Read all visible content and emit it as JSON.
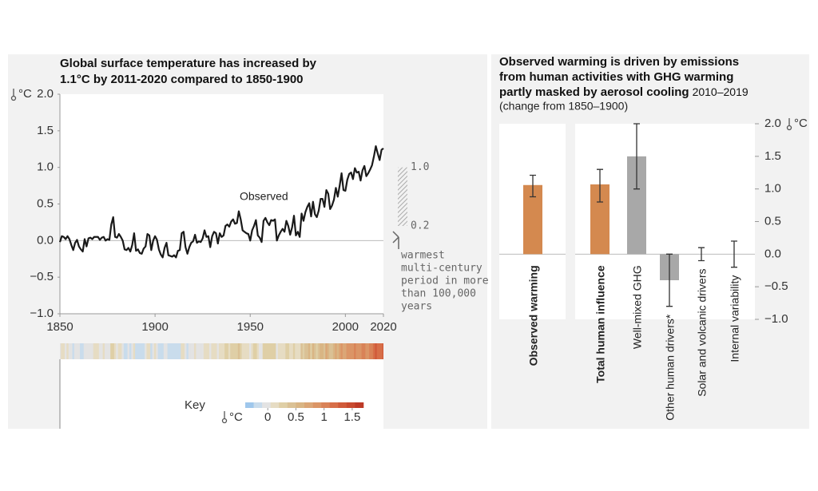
{
  "chart_data": [
    {
      "type": "line",
      "title": [
        "Global surface temperature has increased by",
        "1.1°C by 2011-2020 compared to 1850-1900"
      ],
      "y_unit": "°C",
      "x": [
        1850,
        1851,
        1852,
        1853,
        1854,
        1855,
        1856,
        1857,
        1858,
        1859,
        1860,
        1861,
        1862,
        1863,
        1864,
        1865,
        1866,
        1867,
        1868,
        1869,
        1870,
        1871,
        1872,
        1873,
        1874,
        1875,
        1876,
        1877,
        1878,
        1879,
        1880,
        1881,
        1882,
        1883,
        1884,
        1885,
        1886,
        1887,
        1888,
        1889,
        1890,
        1891,
        1892,
        1893,
        1894,
        1895,
        1896,
        1897,
        1898,
        1899,
        1900,
        1901,
        1902,
        1903,
        1904,
        1905,
        1906,
        1907,
        1908,
        1909,
        1910,
        1911,
        1912,
        1913,
        1914,
        1915,
        1916,
        1917,
        1918,
        1919,
        1920,
        1921,
        1922,
        1923,
        1924,
        1925,
        1926,
        1927,
        1928,
        1929,
        1930,
        1931,
        1932,
        1933,
        1934,
        1935,
        1936,
        1937,
        1938,
        1939,
        1940,
        1941,
        1942,
        1943,
        1944,
        1945,
        1946,
        1947,
        1948,
        1949,
        1950,
        1951,
        1952,
        1953,
        1954,
        1955,
        1956,
        1957,
        1958,
        1959,
        1960,
        1961,
        1962,
        1963,
        1964,
        1965,
        1966,
        1967,
        1968,
        1969,
        1970,
        1971,
        1972,
        1973,
        1974,
        1975,
        1976,
        1977,
        1978,
        1979,
        1980,
        1981,
        1982,
        1983,
        1984,
        1985,
        1986,
        1987,
        1988,
        1989,
        1990,
        1991,
        1992,
        1993,
        1994,
        1995,
        1996,
        1997,
        1998,
        1999,
        2000,
        2001,
        2002,
        2003,
        2004,
        2005,
        2006,
        2007,
        2008,
        2009,
        2010,
        2011,
        2012,
        2013,
        2014,
        2015,
        2016,
        2017,
        2018,
        2019,
        2020
      ],
      "series": [
        {
          "name": "Observed",
          "color": "#1a1a1a",
          "values": [
            -0.02,
            0.06,
            0.05,
            0.02,
            0.06,
            0.02,
            -0.06,
            -0.13,
            -0.03,
            0.01,
            -0.08,
            -0.12,
            -0.15,
            0.02,
            -0.08,
            0.03,
            0.04,
            0.02,
            0.05,
            0.05,
            0.05,
            0.01,
            0.04,
            0.05,
            0.0,
            0.02,
            0.01,
            0.22,
            0.32,
            0.05,
            0.04,
            0.09,
            0.05,
            0.0,
            -0.12,
            -0.13,
            -0.1,
            -0.15,
            -0.06,
            0.1,
            -0.14,
            -0.12,
            -0.17,
            -0.18,
            -0.11,
            -0.08,
            0.09,
            0.07,
            -0.13,
            0.0,
            0.06,
            0.01,
            -0.12,
            -0.19,
            -0.23,
            -0.1,
            -0.03,
            -0.2,
            -0.21,
            -0.22,
            -0.2,
            -0.23,
            -0.14,
            -0.13,
            0.1,
            0.12,
            -0.09,
            -0.18,
            -0.09,
            -0.03,
            -0.01,
            0.08,
            -0.03,
            -0.01,
            -0.02,
            0.03,
            0.14,
            0.05,
            0.06,
            -0.09,
            0.06,
            0.12,
            0.1,
            -0.04,
            0.1,
            0.05,
            0.07,
            0.2,
            0.22,
            0.19,
            0.26,
            0.29,
            0.23,
            0.24,
            0.4,
            0.29,
            0.14,
            0.12,
            0.1,
            0.09,
            0.0,
            0.14,
            0.2,
            0.28,
            0.07,
            0.04,
            -0.02,
            0.27,
            0.31,
            0.25,
            0.21,
            0.28,
            0.27,
            0.29,
            0.0,
            0.07,
            0.12,
            0.16,
            0.12,
            0.27,
            0.2,
            0.08,
            0.18,
            0.34,
            0.07,
            0.12,
            0.05,
            0.37,
            0.27,
            0.39,
            0.46,
            0.51,
            0.33,
            0.53,
            0.36,
            0.32,
            0.41,
            0.57,
            0.57,
            0.46,
            0.69,
            0.64,
            0.43,
            0.48,
            0.56,
            0.72,
            0.6,
            0.75,
            0.92,
            0.69,
            0.68,
            0.83,
            0.91,
            0.93,
            0.84,
            0.99,
            0.93,
            0.94,
            0.82,
            0.96,
            1.02,
            0.88,
            0.92,
            0.97,
            1.03,
            1.15,
            1.29,
            1.19,
            1.1,
            1.24,
            1.26
          ]
        }
      ],
      "xlim": [
        1850,
        2020
      ],
      "xticks": [
        1850,
        1900,
        1950,
        2000,
        2020
      ],
      "ylim": [
        -1,
        2
      ],
      "yticks": [
        {
          "value": 2,
          "label": "2.0"
        },
        1.5,
        {
          "value": 1,
          "label": "1.0"
        },
        0.5,
        {
          "value": 0,
          "label": "0.0"
        },
        {
          "value": -0.5,
          "label": "−0.5"
        },
        {
          "value": -1,
          "label": "−1.0"
        }
      ],
      "warmest_period": {
        "range": [
          0.2,
          {
            "value": 1,
            "label": "1.0"
          }
        ],
        "label": [
          "warmest",
          "multi-century",
          "period in more",
          "than 100,000",
          "years"
        ]
      },
      "stripes": {
        "key_title": "Key",
        "unit": "°C",
        "bins": [
          -0.4,
          -0.25,
          -0.1,
          0.05,
          0.2,
          0.35,
          0.5,
          0.65,
          0.8,
          0.95,
          1.1,
          1.25,
          1.4,
          1.55,
          1.7
        ],
        "colors": [
          "#9fc7ec",
          "#c9dcec",
          "#e3e3e3",
          "#e6dcc3",
          "#dfcfa6",
          "#dac195",
          "#d9b584",
          "#dba676",
          "#db9566",
          "#d98257",
          "#d76e48",
          "#d05a3a",
          "#c84a2f",
          "#bd3a26"
        ],
        "ticks": [
          0,
          0.5,
          1,
          1.5
        ]
      }
    },
    {
      "type": "bar",
      "title": [
        "Observed warming is driven by emissions",
        "from human activities with GHG warming",
        "partly masked by aerosol cooling"
      ],
      "period": "2010–2019",
      "subtitle": "(change from 1850–1900)",
      "y_unit": "°C",
      "categories": [
        "Observed warming",
        "Total human influence",
        "Well-mixed GHG",
        "Other human drivers*",
        "Solar and volcanic drivers",
        "Internal variability"
      ],
      "values": [
        1.06,
        1.07,
        1.5,
        -0.4,
        0.0,
        0.0
      ],
      "lower": [
        0.88,
        0.8,
        1.0,
        -0.8,
        -0.1,
        -0.2
      ],
      "upper": [
        1.21,
        1.3,
        2.0,
        0.0,
        0.1,
        0.2
      ],
      "colors": [
        "#d4894f",
        "#d4894f",
        "#a8a8a8",
        "#a8a8a8",
        "#a8a8a8",
        "#a8a8a8"
      ],
      "bold": [
        true,
        true,
        false,
        false,
        false,
        false
      ],
      "ylim": [
        -1,
        2
      ],
      "yticks": [
        {
          "value": 2,
          "label": "2.0"
        },
        1.5,
        {
          "value": 1,
          "label": "1.0"
        },
        0.5,
        {
          "value": 0,
          "label": "0.0"
        },
        {
          "value": -0.5,
          "label": "−0.5"
        },
        {
          "value": -1,
          "label": "−1.0"
        }
      ]
    }
  ]
}
